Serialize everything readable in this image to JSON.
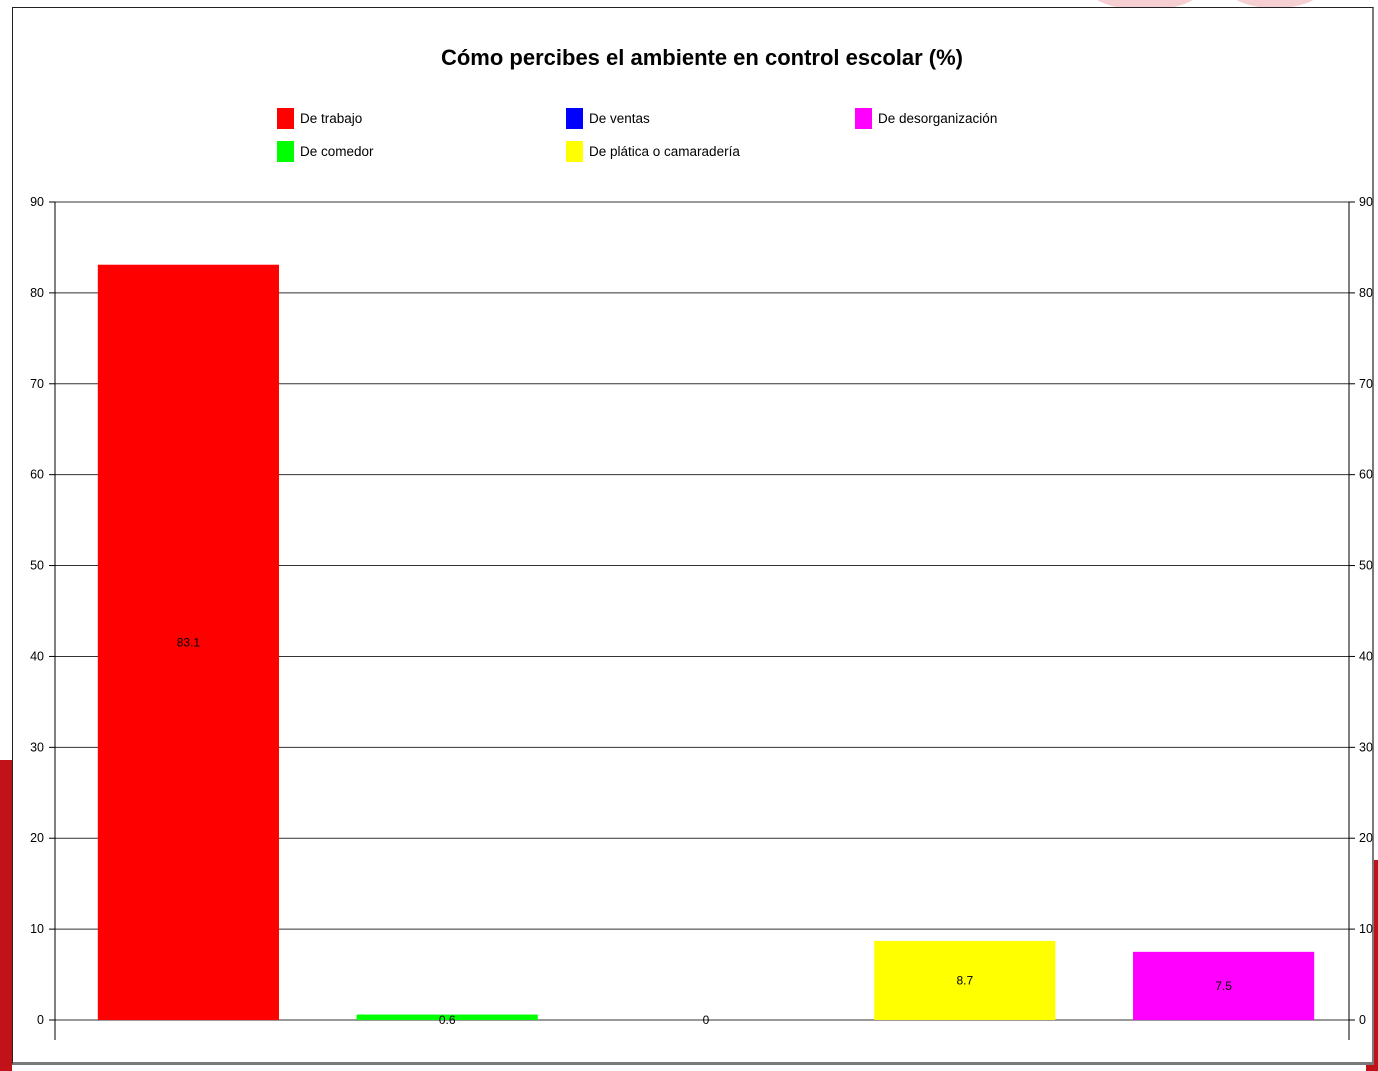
{
  "chart_data": {
    "type": "bar",
    "title": "Cómo percibes  el ambiente en control escolar (%)",
    "categories": [
      "De trabajo",
      "De comedor",
      "De ventas",
      "De plática o camaradería",
      "De desorganización"
    ],
    "values": [
      83.1,
      0.6,
      0,
      8.7,
      7.5
    ],
    "data_labels": [
      "83.1",
      "0.6",
      "0",
      "8.7",
      "7.5"
    ],
    "colors": [
      "#ff0000",
      "#00ff00",
      "#0000ff",
      "#ffff00",
      "#ff00ff"
    ],
    "legend": [
      {
        "label": "De trabajo",
        "color": "#ff0000"
      },
      {
        "label": "De ventas",
        "color": "#0000ff"
      },
      {
        "label": "De desorganización",
        "color": "#ff00ff"
      },
      {
        "label": "De comedor",
        "color": "#00ff00"
      },
      {
        "label": "De plática o camaradería",
        "color": "#ffff00"
      }
    ],
    "legend_position": "top",
    "ylim": [
      0,
      90
    ],
    "yticks": [
      0,
      10,
      20,
      30,
      40,
      50,
      60,
      70,
      80,
      90
    ],
    "secondary_y_axis": true,
    "grid": true,
    "xlabel": "",
    "ylabel": ""
  }
}
